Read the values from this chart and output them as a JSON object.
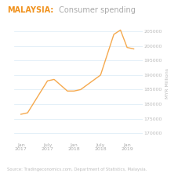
{
  "title_bold": "MALAYSIA:",
  "title_normal": " Consumer spending",
  "title_color_bold": "#f0921e",
  "title_color_normal": "#aaaaaa",
  "title_fontsize": 7.0,
  "line_color": "#f5a94e",
  "line_width": 1.0,
  "background_color": "#ffffff",
  "grid_color": "#d9eaf5",
  "source_text": "Source: Tradingeconomics.com, Department of Statistics, Malaysia.",
  "ylabel": "MYR Millions",
  "ylabel_fontsize": 4.5,
  "tick_fontsize": 4.5,
  "source_fontsize": 3.8,
  "x_labels": [
    "Jan\n2017",
    "July\n2017",
    "Jan\n2018",
    "July\n2018",
    "Jan\n2019"
  ],
  "x_positions": [
    0,
    2,
    4,
    6,
    8
  ],
  "y_ticks": [
    170000,
    175000,
    180000,
    185000,
    190000,
    195000,
    200000,
    205000
  ],
  "ylim": [
    167000,
    207500
  ],
  "xlim": [
    -0.5,
    9.2
  ],
  "data_x": [
    0,
    0.5,
    2.0,
    2.5,
    3.5,
    4.0,
    4.5,
    6.0,
    7.0,
    7.5,
    8.0,
    8.5
  ],
  "data_y": [
    176500,
    177000,
    188000,
    188500,
    184500,
    184500,
    185000,
    190000,
    204000,
    205500,
    199500,
    199000
  ]
}
